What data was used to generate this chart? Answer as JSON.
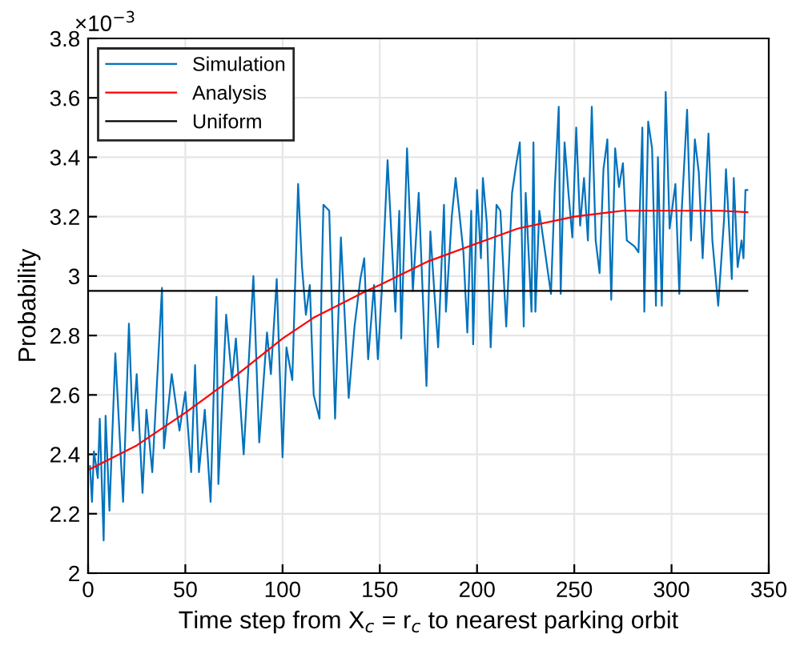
{
  "chart_data": {
    "type": "line",
    "xlabel": "Time step from X$_{c}$ = r$_{c}$ to nearest parking orbit",
    "ylabel": "Probability",
    "annotations": [
      "×10$^{−3}$"
    ],
    "xlim": [
      0,
      350
    ],
    "xticks": [
      0,
      50,
      100,
      150,
      200,
      250,
      300,
      350
    ],
    "ylim": [
      2,
      3.8
    ],
    "yticks": [
      2,
      2.2,
      2.4,
      2.6,
      2.8,
      3,
      3.2,
      3.4,
      3.6,
      3.8
    ],
    "grid": true,
    "legend": "top left",
    "series": [
      {
        "name": "Simulation",
        "color": "#0072bd",
        "x": [
          1,
          2,
          3,
          5,
          6,
          8,
          9,
          11,
          14,
          18,
          21,
          23,
          25,
          28,
          30,
          33,
          38,
          39,
          43,
          47,
          50,
          53,
          55,
          57,
          60,
          63,
          66,
          67,
          71,
          74,
          76,
          80,
          85,
          88,
          92,
          94,
          97,
          100,
          102,
          105,
          108,
          110,
          112,
          114,
          116,
          119,
          120,
          121,
          124,
          127,
          130,
          134,
          137,
          140,
          142,
          144,
          147,
          149,
          151,
          154,
          158,
          160,
          161,
          164,
          167,
          170,
          172,
          174,
          176,
          178,
          180,
          183,
          184,
          187,
          189,
          193,
          195,
          197,
          198,
          200,
          202,
          203,
          205,
          207,
          210,
          212,
          215,
          218,
          220,
          222,
          224,
          225,
          228,
          229,
          230,
          232,
          235,
          238,
          240,
          242,
          243,
          245,
          247,
          249,
          251,
          253,
          255,
          257,
          259,
          261,
          263,
          265,
          267,
          269,
          271,
          273,
          275,
          277,
          281,
          283,
          285,
          286,
          288,
          290,
          292,
          293,
          295,
          297,
          299,
          302,
          304,
          305,
          308,
          310,
          312,
          314,
          316,
          319,
          321,
          324,
          327,
          328,
          331,
          332,
          334,
          336,
          337,
          338,
          339
        ],
        "values": [
          2.36,
          2.24,
          2.41,
          2.32,
          2.52,
          2.11,
          2.53,
          2.21,
          2.74,
          2.24,
          2.84,
          2.48,
          2.67,
          2.27,
          2.55,
          2.34,
          2.96,
          2.42,
          2.67,
          2.48,
          2.61,
          2.34,
          2.7,
          2.34,
          2.55,
          2.24,
          2.93,
          2.3,
          2.87,
          2.65,
          2.79,
          2.4,
          3.0,
          2.44,
          2.81,
          2.67,
          2.99,
          2.39,
          2.76,
          2.65,
          3.31,
          3.03,
          2.87,
          2.97,
          2.6,
          2.52,
          2.95,
          3.24,
          3.22,
          2.52,
          3.13,
          2.59,
          2.83,
          2.99,
          3.06,
          2.72,
          2.97,
          2.72,
          2.95,
          3.39,
          2.88,
          3.22,
          2.79,
          3.43,
          2.95,
          3.28,
          2.95,
          2.63,
          3.15,
          2.95,
          2.76,
          3.24,
          2.88,
          3.2,
          3.33,
          3.08,
          2.81,
          3.22,
          2.77,
          3.29,
          3.06,
          3.33,
          3.18,
          2.76,
          3.24,
          3.22,
          2.83,
          3.28,
          3.37,
          3.45,
          2.83,
          3.28,
          2.88,
          3.45,
          2.88,
          3.22,
          3.08,
          2.94,
          3.3,
          3.57,
          2.94,
          3.45,
          3.28,
          3.13,
          3.5,
          3.17,
          3.33,
          3.12,
          3.57,
          3.12,
          3.01,
          3.36,
          3.46,
          2.92,
          3.43,
          3.3,
          3.38,
          3.12,
          3.1,
          3.08,
          3.5,
          2.88,
          3.52,
          3.43,
          2.9,
          3.4,
          2.9,
          3.62,
          3.16,
          3.31,
          2.94,
          3.19,
          3.56,
          3.12,
          3.46,
          3.35,
          3.06,
          3.48,
          3.12,
          2.9,
          3.19,
          3.36,
          2.99,
          3.33,
          3.03,
          3.12,
          3.06,
          3.29,
          3.29
        ]
      },
      {
        "name": "Analysis",
        "color": "#ff0000",
        "x": [
          1,
          25,
          50,
          75,
          100,
          116,
          125,
          143,
          150,
          175,
          200,
          221,
          250,
          275,
          300,
          325,
          339
        ],
        "values": [
          2.35,
          2.43,
          2.54,
          2.66,
          2.79,
          2.86,
          2.89,
          2.95,
          2.97,
          3.05,
          3.11,
          3.16,
          3.2,
          3.22,
          3.22,
          3.22,
          3.215
        ]
      },
      {
        "name": "Uniform",
        "color": "#000000",
        "x": [
          0,
          339
        ],
        "values": [
          2.95,
          2.95
        ]
      }
    ]
  }
}
